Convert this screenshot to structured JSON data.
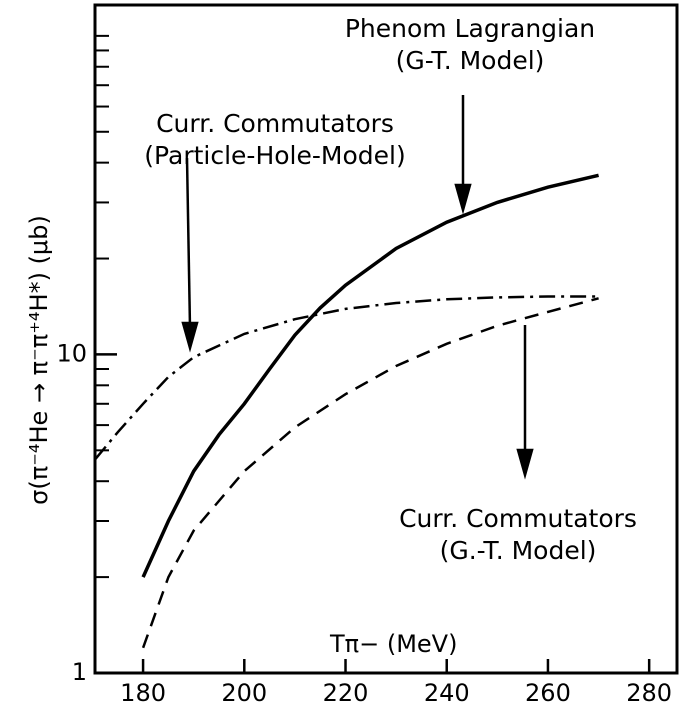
{
  "chart_data": {
    "type": "line",
    "x_label": "Tπ− (MeV)",
    "y_label": "σ(π⁻⁴He → π⁻π⁺⁴H*)   (μb)",
    "log_y": true,
    "xlim": [
      170.5,
      285.5
    ],
    "ylim": [
      1,
      125
    ],
    "xticks": [
      180,
      200,
      220,
      240,
      260,
      280
    ],
    "yticks": [
      1,
      10
    ],
    "y_minor_ticks": [
      2,
      3,
      4,
      5,
      6,
      7,
      8,
      9,
      20,
      30,
      40,
      50,
      60,
      70,
      80,
      90,
      100
    ],
    "series": [
      {
        "name": "Phenom Lagrangian (G-T. Model)",
        "color": "#000000",
        "dash": "solid",
        "x": [
          180,
          185,
          190,
          195,
          200,
          205,
          210,
          215,
          220,
          230,
          240,
          250,
          260,
          270
        ],
        "values": [
          2.0,
          3.0,
          4.3,
          5.6,
          7.0,
          9.0,
          11.5,
          14,
          16.5,
          21.5,
          26,
          30,
          33.5,
          36.5
        ]
      },
      {
        "name": "Curr. Commutators (Particle-Hole-Model)",
        "color": "#000000",
        "dash": "dashdot",
        "x": [
          170.6,
          175,
          180,
          185,
          190,
          200,
          210,
          220,
          230,
          240,
          250,
          260,
          270
        ],
        "values": [
          4.7,
          5.7,
          7.0,
          8.5,
          9.8,
          11.6,
          12.9,
          13.9,
          14.5,
          14.9,
          15.1,
          15.2,
          15.2
        ]
      },
      {
        "name": "Curr. Commutators (G.-T. Model)",
        "color": "#000000",
        "dash": "dashed",
        "x": [
          180,
          185,
          190,
          200,
          210,
          220,
          230,
          240,
          250,
          260,
          270
        ],
        "values": [
          1.2,
          2.0,
          2.8,
          4.3,
          5.9,
          7.5,
          9.2,
          10.8,
          12.3,
          13.6,
          15.0
        ]
      }
    ],
    "annotations": [
      {
        "lines": [
          "Phenom Lagrangian",
          "(G-T. Model)"
        ]
      },
      {
        "lines": [
          "Curr. Commutators",
          "(Particle-Hole-Model)"
        ]
      },
      {
        "lines": [
          "Curr. Commutators",
          "(G.-T. Model)"
        ]
      }
    ]
  }
}
